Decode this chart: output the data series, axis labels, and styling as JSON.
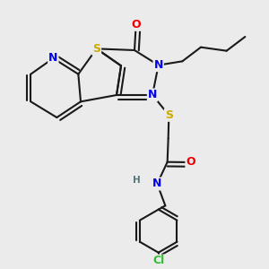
{
  "background_color": "#ebebeb",
  "bond_color": "#1a1a1a",
  "atom_colors": {
    "N": "#0000ee",
    "O": "#ee0000",
    "S": "#ccaa00",
    "Cl": "#33bb33",
    "H": "#557777",
    "C": "#1a1a1a"
  },
  "figsize": [
    3.0,
    3.0
  ],
  "dpi": 100
}
